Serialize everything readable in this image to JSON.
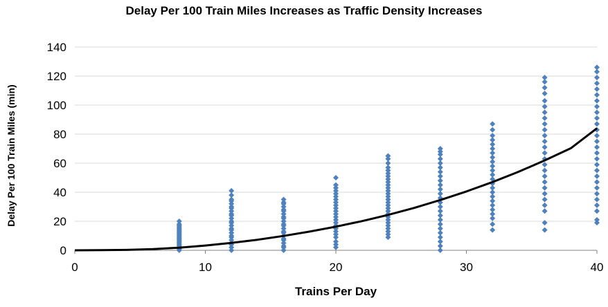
{
  "chart_data": {
    "type": "scatter",
    "title": "Delay Per 100 Train Miles Increases as Traffic Density Increases",
    "xlabel": "Trains Per Day",
    "ylabel": "Delay Per 100 Train Miles (min)",
    "xlim": [
      0,
      40
    ],
    "ylim": [
      0,
      140
    ],
    "xticks": [
      0,
      10,
      20,
      30,
      40
    ],
    "yticks": [
      0,
      20,
      40,
      60,
      80,
      100,
      120,
      140
    ],
    "grid": "horizontal",
    "legend": "none",
    "colors": {
      "points": "#4F81BD",
      "trend": "#000000",
      "grid": "#D9D9D9"
    },
    "series": [
      {
        "kind": "points",
        "groups": [
          {
            "x": 8,
            "y": [
              0,
              1,
              2,
              3,
              4,
              5,
              6,
              7,
              8,
              9,
              10,
              11,
              12,
              13,
              14,
              15,
              16,
              17,
              18,
              20
            ]
          },
          {
            "x": 12,
            "y": [
              0,
              2,
              4,
              5,
              7,
              9,
              10,
              12,
              14,
              15,
              17,
              19,
              20,
              22,
              24,
              25,
              27,
              29,
              30,
              32,
              34,
              35,
              38,
              41
            ]
          },
          {
            "x": 16,
            "y": [
              0,
              2,
              3,
              5,
              7,
              8,
              10,
              12,
              13,
              15,
              17,
              18,
              20,
              22,
              23,
              25,
              27,
              28,
              30,
              32,
              33,
              35
            ]
          },
          {
            "x": 20,
            "y": [
              2,
              4,
              6,
              9,
              11,
              13,
              15,
              17,
              19,
              21,
              23,
              25,
              27,
              29,
              31,
              33,
              35,
              37,
              39,
              41,
              43,
              45,
              50
            ]
          },
          {
            "x": 24,
            "y": [
              9,
              11,
              13,
              15,
              17,
              19,
              21,
              23,
              25,
              27,
              29,
              31,
              33,
              35,
              37,
              39,
              41,
              43,
              45,
              47,
              49,
              51,
              53,
              55,
              57,
              60,
              63,
              65
            ]
          },
          {
            "x": 28,
            "y": [
              0,
              3,
              6,
              9,
              12,
              15,
              18,
              21,
              24,
              27,
              30,
              33,
              36,
              39,
              42,
              45,
              48,
              51,
              54,
              57,
              60,
              63,
              66,
              68,
              70
            ]
          },
          {
            "x": 32,
            "y": [
              14,
              18,
              22,
              25,
              28,
              31,
              34,
              37,
              40,
              43,
              46,
              49,
              52,
              55,
              58,
              61,
              64,
              67,
              70,
              73,
              76,
              79,
              83,
              87
            ]
          },
          {
            "x": 36,
            "y": [
              14,
              19,
              27,
              31,
              35,
              39,
              43,
              47,
              51,
              55,
              59,
              63,
              67,
              71,
              75,
              79,
              83,
              87,
              91,
              95,
              99,
              103,
              108,
              112,
              116,
              119
            ]
          },
          {
            "x": 40,
            "y": [
              19,
              21,
              27,
              31,
              35,
              39,
              43,
              47,
              51,
              55,
              59,
              63,
              67,
              71,
              75,
              79,
              83,
              87,
              91,
              95,
              99,
              103,
              107,
              111,
              115,
              119,
              123,
              126
            ]
          }
        ]
      },
      {
        "kind": "trend",
        "x": [
          0,
          2,
          4,
          6,
          8,
          10,
          12,
          14,
          16,
          18,
          20,
          22,
          24,
          26,
          28,
          30,
          32,
          34,
          36,
          38,
          40
        ],
        "y": [
          0,
          0.1,
          0.3,
          0.8,
          1.8,
          3.3,
          5.1,
          7.3,
          9.9,
          12.9,
          16.3,
          20.1,
          24.4,
          29.2,
          34.6,
          40.5,
          47.0,
          54.1,
          61.9,
          70.3,
          84.0
        ]
      }
    ]
  }
}
